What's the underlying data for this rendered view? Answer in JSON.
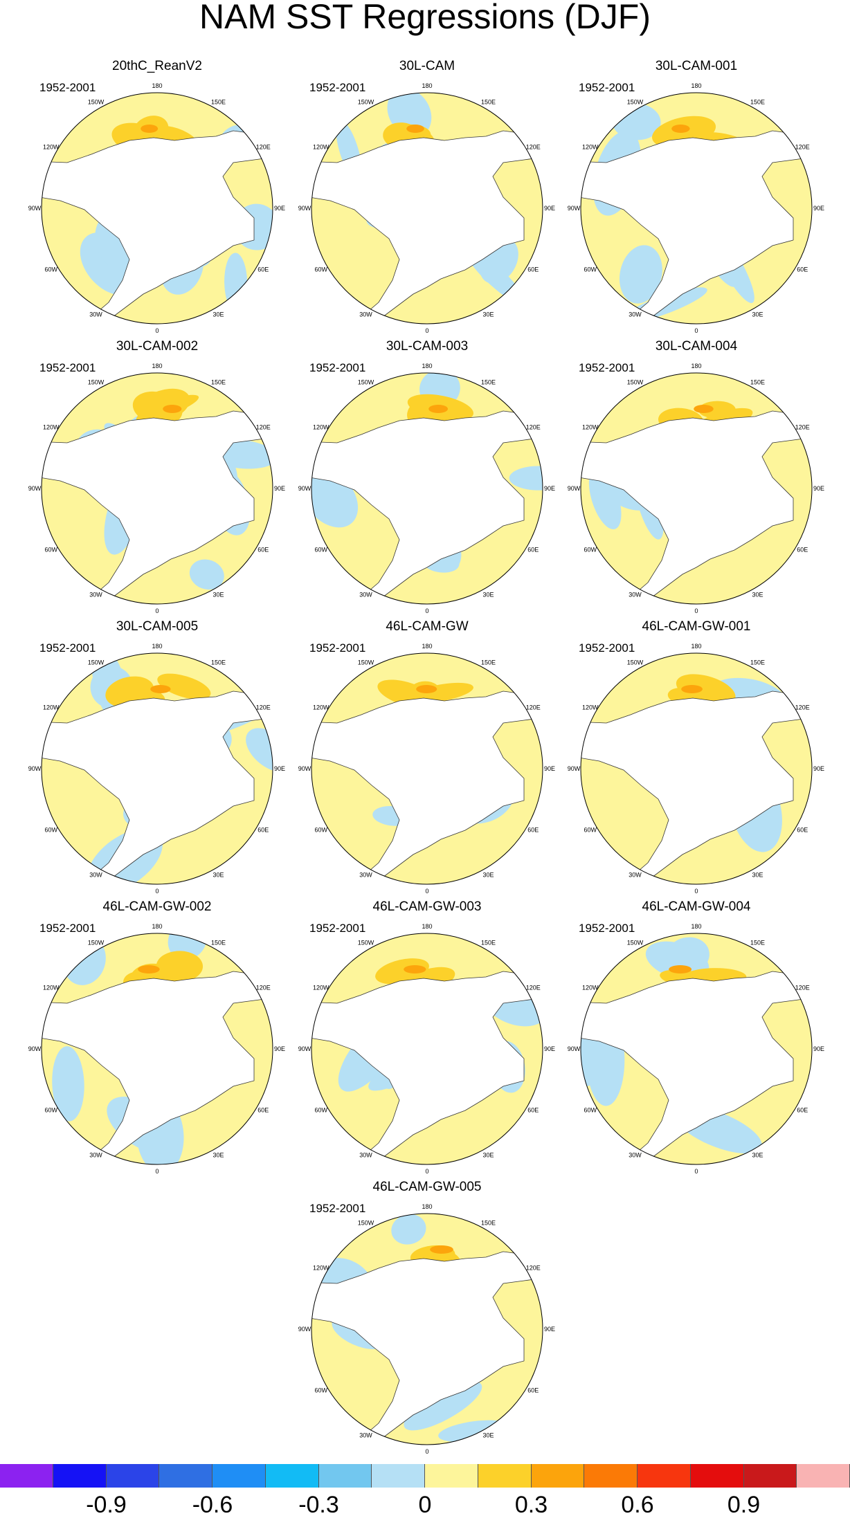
{
  "title": "NAM SST Regressions (DJF)",
  "period_label": "1952-2001",
  "longitude_labels": [
    "180",
    "150E",
    "120E",
    "90E",
    "60E",
    "30E",
    "0",
    "30W",
    "60W",
    "90W",
    "120W",
    "150W"
  ],
  "panels": [
    {
      "name": "20thC_ReanV2"
    },
    {
      "name": "30L-CAM"
    },
    {
      "name": "30L-CAM-001"
    },
    {
      "name": "30L-CAM-002"
    },
    {
      "name": "30L-CAM-003"
    },
    {
      "name": "30L-CAM-004"
    },
    {
      "name": "30L-CAM-005"
    },
    {
      "name": "46L-CAM-GW"
    },
    {
      "name": "46L-CAM-GW-001"
    },
    {
      "name": "46L-CAM-GW-002"
    },
    {
      "name": "46L-CAM-GW-003"
    },
    {
      "name": "46L-CAM-GW-004"
    },
    {
      "name": "46L-CAM-GW-005"
    }
  ],
  "colorbar": {
    "colors": [
      "#8c22f0",
      "#1512f5",
      "#2b44e8",
      "#2f6fe3",
      "#1f8ef5",
      "#12bbf5",
      "#72c7ef",
      "#b5e0f5",
      "#fdf59b",
      "#fcd12a",
      "#fca40c",
      "#fb7a06",
      "#f7360e",
      "#e40d0d",
      "#c9191b",
      "#f9b3b3"
    ],
    "tick_labels": [
      "-0.9",
      "-0.6",
      "-0.3",
      "0",
      "0.3",
      "0.6",
      "0.9"
    ]
  },
  "legend_colors": {
    "land": "#ffffff",
    "coast": "#333333",
    "neutral_positive": "#fdf59b",
    "neutral_negative": "#b5e0f5"
  }
}
